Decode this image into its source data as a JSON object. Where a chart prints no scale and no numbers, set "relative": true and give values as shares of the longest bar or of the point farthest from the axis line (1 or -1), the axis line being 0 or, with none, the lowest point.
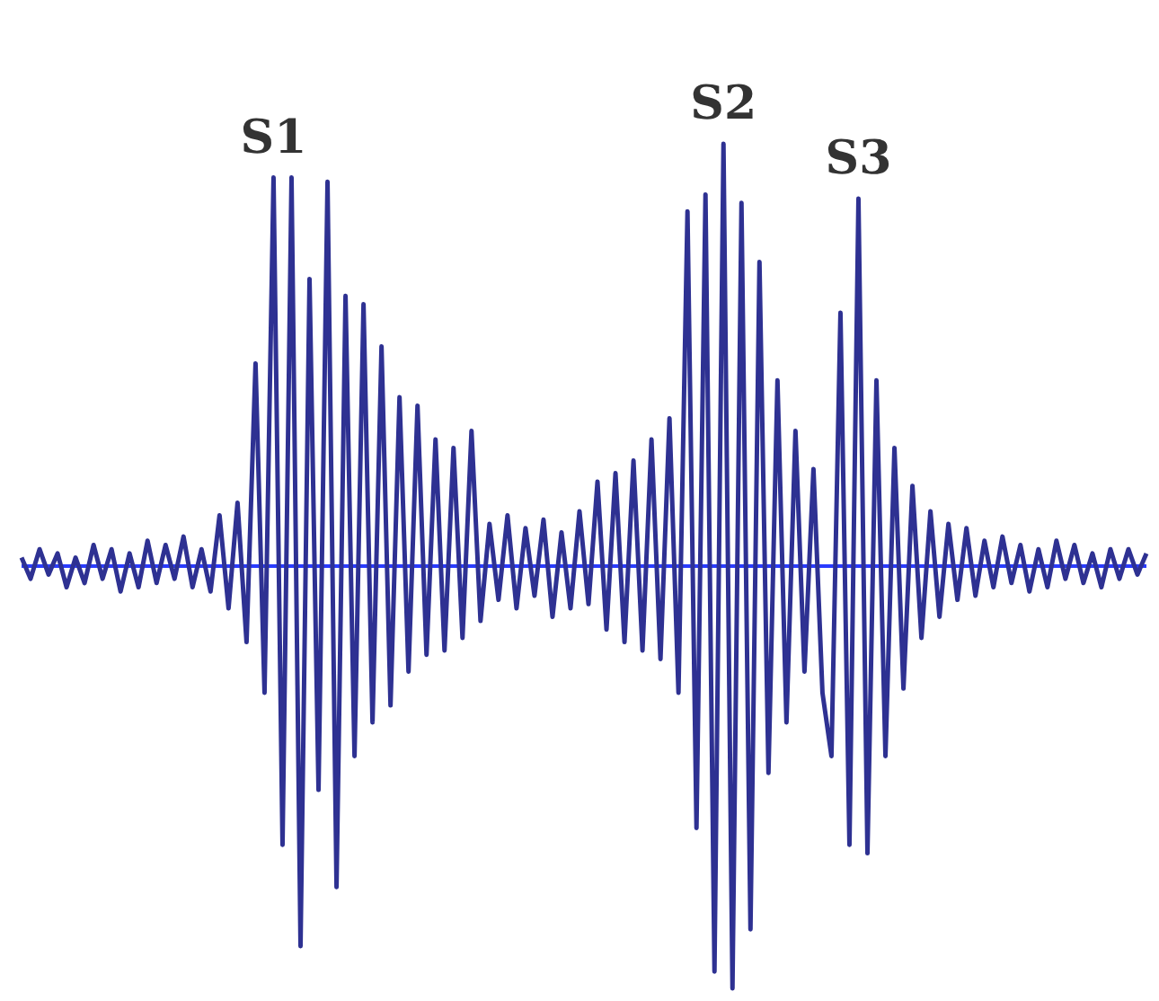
{
  "chart_data": {
    "type": "line",
    "relative": true,
    "tick_labels": false,
    "grid": false,
    "legend": false,
    "marker": "none",
    "line_style": "solid",
    "categories": [
      null,
      null,
      null,
      null,
      null,
      null,
      null,
      null,
      null,
      null,
      null,
      null,
      null,
      null,
      null,
      null,
      null,
      null,
      null,
      null,
      null,
      null,
      null,
      null,
      null,
      null,
      null,
      null,
      null,
      null,
      null,
      null,
      null,
      null,
      null,
      null,
      null,
      null,
      null,
      null,
      null,
      null,
      null,
      null,
      null,
      null,
      null,
      null,
      null,
      null,
      null,
      null,
      null,
      null,
      null,
      null,
      null,
      null,
      null,
      null,
      null,
      null,
      null,
      null,
      null,
      null,
      null,
      null,
      null,
      null,
      null,
      null,
      null,
      null,
      null,
      null,
      null,
      null,
      null,
      null,
      null,
      null,
      null,
      null,
      null,
      null,
      null,
      null,
      null,
      null,
      null,
      null,
      null,
      null,
      null,
      null,
      null,
      null,
      null,
      null,
      null,
      null,
      null,
      null,
      null,
      null,
      null,
      null,
      null,
      null,
      null,
      null,
      null,
      null,
      null,
      null,
      null,
      null,
      null,
      null,
      null,
      null,
      null,
      null,
      null,
      null
    ],
    "series": [
      {
        "color": "#2e3192",
        "values": [
          0.02,
          -0.03,
          0.04,
          -0.02,
          0.03,
          -0.05,
          0.02,
          -0.04,
          0.05,
          -0.03,
          0.04,
          -0.06,
          0.03,
          -0.05,
          0.06,
          -0.04,
          0.05,
          -0.03,
          0.07,
          -0.05,
          0.04,
          -0.06,
          0.12,
          -0.1,
          0.15,
          -0.18,
          0.48,
          -0.3,
          0.92,
          -0.66,
          0.92,
          -0.9,
          0.68,
          -0.53,
          0.91,
          -0.76,
          0.64,
          -0.45,
          0.62,
          -0.37,
          0.52,
          -0.33,
          0.4,
          -0.25,
          0.38,
          -0.21,
          0.3,
          -0.2,
          0.28,
          -0.17,
          0.32,
          -0.13,
          0.1,
          -0.08,
          0.12,
          -0.1,
          0.09,
          -0.07,
          0.11,
          -0.12,
          0.08,
          -0.1,
          0.13,
          -0.09,
          0.2,
          -0.15,
          0.22,
          -0.18,
          0.25,
          -0.2,
          0.3,
          -0.22,
          0.35,
          -0.3,
          0.84,
          -0.62,
          0.88,
          -0.96,
          1.0,
          -1.0,
          0.86,
          -0.86,
          0.72,
          -0.49,
          0.44,
          -0.37,
          0.32,
          -0.25,
          0.23,
          -0.3,
          -0.45,
          0.6,
          -0.66,
          0.87,
          -0.68,
          0.44,
          -0.45,
          0.28,
          -0.29,
          0.19,
          -0.17,
          0.13,
          -0.12,
          0.1,
          -0.08,
          0.09,
          -0.07,
          0.06,
          -0.05,
          0.07,
          -0.04,
          0.05,
          -0.06,
          0.04,
          -0.05,
          0.06,
          -0.03,
          0.05,
          -0.04,
          0.03,
          -0.05,
          0.04,
          -0.03,
          0.04,
          -0.02,
          0.03
        ]
      }
    ],
    "ref_lines": [
      {
        "axis": "y",
        "value": 0,
        "color": "#2a3cff"
      }
    ],
    "annotations": [
      {
        "text": "S1",
        "y": 0.92
      },
      {
        "text": "S2",
        "y": 1.0
      },
      {
        "text": "S3",
        "y": 0.87
      }
    ]
  }
}
